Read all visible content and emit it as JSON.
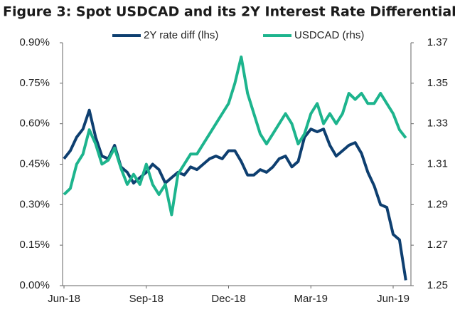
{
  "chart_data": {
    "type": "line",
    "title": "Figure 3: Spot USDCAD and its 2Y Interest Rate Differential",
    "categories": [
      "Jun-18",
      null,
      null,
      null,
      null,
      null,
      null,
      null,
      null,
      null,
      null,
      null,
      null,
      "Sep-18",
      null,
      null,
      null,
      null,
      null,
      null,
      null,
      null,
      null,
      null,
      null,
      null,
      "Dec-18",
      null,
      null,
      null,
      null,
      null,
      null,
      null,
      null,
      null,
      null,
      null,
      null,
      "Mar-19",
      null,
      null,
      null,
      null,
      null,
      null,
      null,
      null,
      null,
      null,
      null,
      null,
      "Jun-19",
      null,
      null
    ],
    "series": [
      {
        "name": "2Y rate diff (lhs)",
        "color": "#0e3f70",
        "values": [
          0.47,
          0.5,
          0.55,
          0.58,
          0.65,
          0.55,
          0.48,
          0.47,
          0.52,
          0.44,
          0.42,
          0.38,
          0.4,
          0.42,
          0.45,
          0.43,
          0.38,
          0.4,
          0.42,
          0.41,
          0.44,
          0.43,
          0.45,
          0.47,
          0.48,
          0.47,
          0.5,
          0.5,
          0.46,
          0.41,
          0.41,
          0.43,
          0.42,
          0.44,
          0.47,
          0.48,
          0.44,
          0.46,
          0.55,
          0.58,
          0.57,
          0.58,
          0.52,
          0.48,
          0.5,
          0.52,
          0.53,
          0.49,
          0.42,
          0.37,
          0.3,
          0.29,
          0.19,
          0.17,
          0.02
        ]
      },
      {
        "name": "USDCAD (rhs)",
        "color": "#1db48d",
        "axis": "y2",
        "values": [
          1.295,
          1.298,
          1.31,
          1.315,
          1.327,
          1.32,
          1.31,
          1.312,
          1.318,
          1.308,
          1.3,
          1.305,
          1.3,
          1.31,
          1.3,
          1.295,
          1.3,
          1.285,
          1.305,
          1.31,
          1.315,
          1.315,
          1.32,
          1.325,
          1.33,
          1.335,
          1.34,
          1.35,
          1.363,
          1.345,
          1.335,
          1.325,
          1.32,
          1.325,
          1.33,
          1.335,
          1.33,
          1.32,
          1.325,
          1.335,
          1.34,
          1.33,
          1.335,
          1.33,
          1.335,
          1.345,
          1.342,
          1.345,
          1.34,
          1.34,
          1.345,
          1.34,
          1.335,
          1.327,
          1.323
        ]
      }
    ],
    "ylim": [
      0,
      0.9
    ],
    "yticks": [
      {
        "value": 0,
        "label": "0.00%"
      },
      {
        "value": 0.15,
        "label": "0.15%"
      },
      {
        "value": 0.3,
        "label": "0.30%"
      },
      {
        "value": 0.45,
        "label": "0.45%"
      },
      {
        "value": 0.6,
        "label": "0.60%"
      },
      {
        "value": 0.75,
        "label": "0.75%"
      },
      {
        "value": 0.9,
        "label": "0.90%"
      }
    ],
    "y2lim": [
      1.25,
      1.37
    ],
    "y2ticks": [
      1.25,
      1.27,
      1.29,
      1.31,
      1.33,
      1.35,
      1.37
    ],
    "legend": "top"
  }
}
